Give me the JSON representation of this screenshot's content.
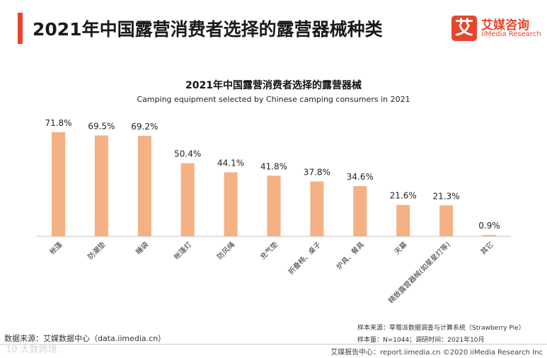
{
  "header": {
    "title": "2021年中国露营消费者选择的露营器械种类",
    "logo_mark": "艾",
    "logo_cn": "艾媒咨询",
    "logo_en": "iiMedia Research"
  },
  "colors": {
    "accent": "#e8452c",
    "bar": "#f4b183",
    "axis": "#bfbfbf"
  },
  "chart_data": {
    "type": "bar",
    "title": "2021年中国露营消费者选择的露营器械",
    "subtitle": "Camping equipment selected by Chinese camping consumers in 2021",
    "categories": [
      "帐篷",
      "防潮垫",
      "睡袋",
      "帐篷灯",
      "防风绳",
      "充气垫",
      "折叠椅、桌子",
      "炉具、餐具",
      "天幕",
      "精致露营器械(如星星灯等)",
      "其它"
    ],
    "values": [
      71.8,
      69.5,
      69.2,
      50.4,
      44.1,
      41.8,
      37.8,
      34.6,
      21.6,
      21.3,
      0.9
    ],
    "value_labels": [
      "71.8%",
      "69.5%",
      "69.2%",
      "50.4%",
      "44.1%",
      "41.8%",
      "37.8%",
      "34.6%",
      "21.6%",
      "21.3%",
      "0.9%"
    ],
    "unit": "%",
    "ylim": [
      0,
      80
    ],
    "grid": false,
    "legend": false
  },
  "notes": {
    "sample_source": "样本来源：草莓派数据调查与计算系统（Strawberry Pie）",
    "sample_size": "样本量：N=1044；调研时间：2021年10月"
  },
  "footer": {
    "data_source": "数据来源：艾媒数据中心（data.iimedia.cn）",
    "report": "艾媒报告中心：report.iimedia.cn  ©2020  iiMedia Research  Inc",
    "watermark": "10 大数跨境"
  }
}
